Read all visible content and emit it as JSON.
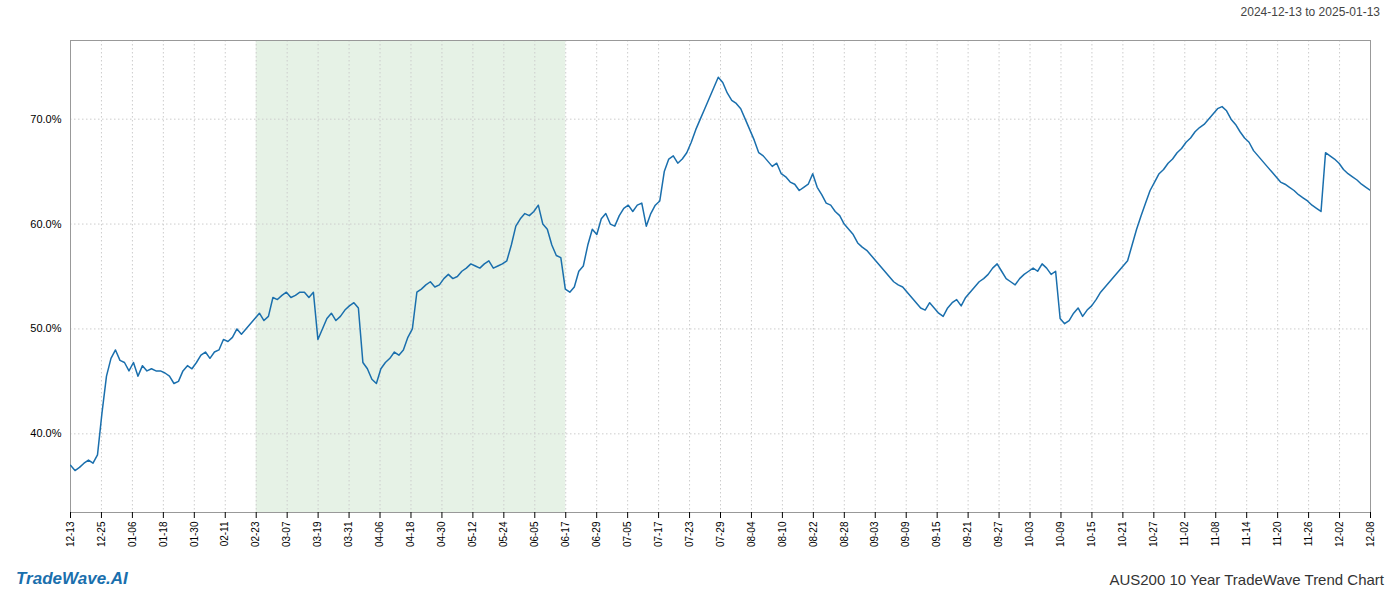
{
  "chart_data": {
    "type": "line",
    "title": "AUS200 10 Year TradeWave Trend Chart",
    "subtitle": "2024-12-13 to 2025-01-13",
    "annotations": [
      "TradeWave.AI"
    ],
    "color": "#1a6fad",
    "grid": true,
    "xlim": [
      0,
      289
    ],
    "xticks": [
      {
        "value": 0,
        "label": "12-13"
      },
      {
        "value": 6.881,
        "label": "12-25"
      },
      {
        "value": 13.7619,
        "label": "01-06"
      },
      {
        "value": 20.6429,
        "label": "01-18"
      },
      {
        "value": 27.5238,
        "label": "01-30"
      },
      {
        "value": 34.4048,
        "label": "02-11"
      },
      {
        "value": 41.2857,
        "label": "02-23"
      },
      {
        "value": 48.1667,
        "label": "03-07"
      },
      {
        "value": 55.0476,
        "label": "03-19"
      },
      {
        "value": 61.9286,
        "label": "03-31"
      },
      {
        "value": 68.8095,
        "label": "04-06"
      },
      {
        "value": 75.6905,
        "label": "04-18"
      },
      {
        "value": 82.5714,
        "label": "04-30"
      },
      {
        "value": 89.4524,
        "label": "05-12"
      },
      {
        "value": 96.3333,
        "label": "05-24"
      },
      {
        "value": 103.2143,
        "label": "06-05"
      },
      {
        "value": 110.0952,
        "label": "06-17"
      },
      {
        "value": 116.9762,
        "label": "06-29"
      },
      {
        "value": 123.8571,
        "label": "07-05"
      },
      {
        "value": 130.7381,
        "label": "07-17"
      },
      {
        "value": 137.619,
        "label": "07-23"
      },
      {
        "value": 144.5,
        "label": "07-29"
      },
      {
        "value": 151.381,
        "label": "08-04"
      },
      {
        "value": 158.2619,
        "label": "08-10"
      },
      {
        "value": 165.1429,
        "label": "08-22"
      },
      {
        "value": 172.0238,
        "label": "08-28"
      },
      {
        "value": 178.9048,
        "label": "09-03"
      },
      {
        "value": 185.7857,
        "label": "09-09"
      },
      {
        "value": 192.6667,
        "label": "09-15"
      },
      {
        "value": 199.5476,
        "label": "09-21"
      },
      {
        "value": 206.4286,
        "label": "09-27"
      },
      {
        "value": 213.3095,
        "label": "10-03"
      },
      {
        "value": 220.1905,
        "label": "10-09"
      },
      {
        "value": 227.0714,
        "label": "10-15"
      },
      {
        "value": 233.9524,
        "label": "10-21"
      },
      {
        "value": 240.8333,
        "label": "10-27"
      },
      {
        "value": 247.7143,
        "label": "11-02"
      },
      {
        "value": 254.5952,
        "label": "11-08"
      },
      {
        "value": 261.4762,
        "label": "11-14"
      },
      {
        "value": 268.3571,
        "label": "11-20"
      },
      {
        "value": 275.2381,
        "label": "11-26"
      },
      {
        "value": 282.119,
        "label": "12-02"
      },
      {
        "value": 289,
        "label": "12-08"
      }
    ],
    "ylim": [
      0.325,
      0.775
    ],
    "yticks": [
      {
        "value": 0.4,
        "label": "40.0%"
      },
      {
        "value": 0.5,
        "label": "50.0%"
      },
      {
        "value": 0.6,
        "label": "60.0%"
      },
      {
        "value": 0.7,
        "label": "70.0%"
      }
    ],
    "highlight": {
      "start": "02-23",
      "end": "06-17",
      "color": "#d6ead6"
    },
    "values": [
      0.37,
      0.365,
      0.368,
      0.372,
      0.375,
      0.372,
      0.38,
      0.42,
      0.455,
      0.472,
      0.48,
      0.47,
      0.468,
      0.46,
      0.468,
      0.455,
      0.465,
      0.46,
      0.462,
      0.46,
      0.46,
      0.458,
      0.455,
      0.448,
      0.45,
      0.46,
      0.465,
      0.462,
      0.468,
      0.475,
      0.478,
      0.472,
      0.478,
      0.48,
      0.49,
      0.488,
      0.492,
      0.5,
      0.495,
      0.5,
      0.505,
      0.51,
      0.515,
      0.508,
      0.512,
      0.53,
      0.528,
      0.532,
      0.535,
      0.53,
      0.532,
      0.535,
      0.535,
      0.53,
      0.535,
      0.49,
      0.5,
      0.51,
      0.515,
      0.508,
      0.512,
      0.518,
      0.522,
      0.525,
      0.52,
      0.468,
      0.462,
      0.452,
      0.448,
      0.462,
      0.468,
      0.472,
      0.478,
      0.475,
      0.48,
      0.492,
      0.5,
      0.535,
      0.538,
      0.542,
      0.545,
      0.54,
      0.542,
      0.548,
      0.552,
      0.548,
      0.55,
      0.555,
      0.558,
      0.562,
      0.56,
      0.558,
      0.562,
      0.565,
      0.558,
      0.56,
      0.562,
      0.565,
      0.58,
      0.598,
      0.605,
      0.61,
      0.608,
      0.612,
      0.618,
      0.6,
      0.595,
      0.58,
      0.57,
      0.568,
      0.538,
      0.535,
      0.54,
      0.555,
      0.56,
      0.58,
      0.595,
      0.59,
      0.605,
      0.61,
      0.6,
      0.598,
      0.608,
      0.615,
      0.618,
      0.612,
      0.618,
      0.62,
      0.598,
      0.61,
      0.618,
      0.622,
      0.65,
      0.662,
      0.665,
      0.658,
      0.662,
      0.668,
      0.678,
      0.69,
      0.7,
      0.71,
      0.72,
      0.73,
      0.74,
      0.735,
      0.725,
      0.718,
      0.715,
      0.71,
      0.7,
      0.69,
      0.68,
      0.668,
      0.665,
      0.66,
      0.655,
      0.658,
      0.648,
      0.645,
      0.64,
      0.638,
      0.632,
      0.635,
      0.638,
      0.648,
      0.635,
      0.628,
      0.62,
      0.618,
      0.612,
      0.608,
      0.6,
      0.595,
      0.59,
      0.582,
      0.578,
      0.575,
      0.57,
      0.565,
      0.56,
      0.555,
      0.55,
      0.545,
      0.542,
      0.54,
      0.535,
      0.53,
      0.525,
      0.52,
      0.518,
      0.525,
      0.52,
      0.515,
      0.512,
      0.52,
      0.525,
      0.528,
      0.522,
      0.53,
      0.535,
      0.54,
      0.545,
      0.548,
      0.552,
      0.558,
      0.562,
      0.555,
      0.548,
      0.545,
      0.542,
      0.548,
      0.552,
      0.555,
      0.558,
      0.555,
      0.562,
      0.558,
      0.552,
      0.555,
      0.51,
      0.505,
      0.508,
      0.515,
      0.52,
      0.512,
      0.518,
      0.522,
      0.528,
      0.535,
      0.54,
      0.545,
      0.55,
      0.555,
      0.56,
      0.565,
      0.58,
      0.595,
      0.608,
      0.62,
      0.632,
      0.64,
      0.648,
      0.652,
      0.658,
      0.662,
      0.668,
      0.672,
      0.678,
      0.682,
      0.688,
      0.692,
      0.695,
      0.7,
      0.705,
      0.71,
      0.712,
      0.708,
      0.7,
      0.695,
      0.688,
      0.682,
      0.678,
      0.67,
      0.665,
      0.66,
      0.655,
      0.65,
      0.645,
      0.64,
      0.638,
      0.635,
      0.632,
      0.628,
      0.625,
      0.622,
      0.618,
      0.615,
      0.612,
      0.668,
      0.665,
      0.662,
      0.658,
      0.652,
      0.648,
      0.645,
      0.642,
      0.638,
      0.635,
      0.632
    ]
  }
}
